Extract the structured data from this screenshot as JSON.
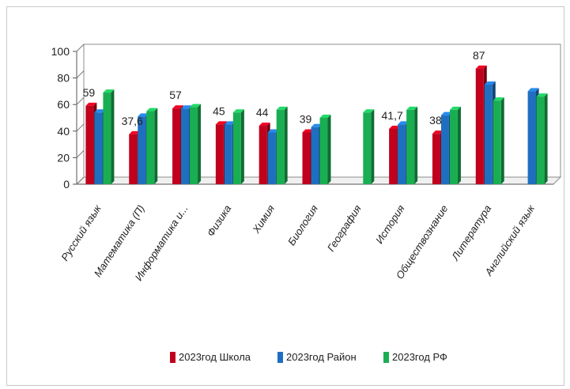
{
  "chart_data": {
    "type": "bar",
    "categories": [
      "Русский язык",
      "Математика (П)",
      "Информатика и...",
      "Физика",
      "Химия",
      "Биология",
      "География",
      "История",
      "Обществознание",
      "Литература",
      "Английский язык"
    ],
    "series": [
      {
        "name": "2023год Школа",
        "values": [
          59,
          37.6,
          57,
          45,
          44,
          39,
          null,
          41.7,
          38,
          87,
          null
        ],
        "color": "#c0001c"
      },
      {
        "name": "2023год Район",
        "values": [
          54,
          51,
          57,
          45,
          39,
          43,
          null,
          45,
          52,
          75,
          70
        ],
        "color": "#1f6fc0"
      },
      {
        "name": "2023год РФ",
        "values": [
          69,
          55,
          58,
          54,
          56,
          50,
          54,
          56,
          56,
          63,
          66
        ],
        "color": "#1aae52"
      }
    ],
    "data_labels": [
      "59",
      "37,6",
      "57",
      "45",
      "44",
      "39",
      "",
      "41,7",
      "38",
      "87",
      ""
    ],
    "y_ticks": [
      "0",
      "20",
      "40",
      "60",
      "80",
      "100"
    ],
    "ylim": [
      0,
      100
    ],
    "legend_position": "bottom",
    "grid": false
  }
}
